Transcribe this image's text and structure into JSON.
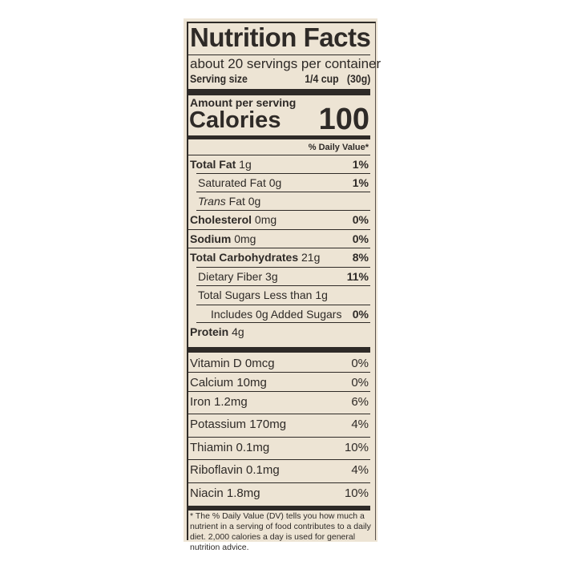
{
  "title": "Nutrition Facts",
  "servings_per_container": "about 20 servings per container",
  "serving_size_label": "Serving size",
  "serving_size_value": "1/4 cup   (30g)",
  "amount_per_serving": "Amount per serving",
  "calories_label": "Calories",
  "calories_value": "100",
  "dv_header": "% Daily Value*",
  "nutrients": [
    {
      "name": "Total Fat",
      "amount": " 1g",
      "dv": "1%"
    },
    {
      "name": "Saturated Fat",
      "amount": " 0g",
      "dv": "1%"
    },
    {
      "name": "Trans",
      "amount": " Fat 0g",
      "dv": ""
    },
    {
      "name": "Cholesterol",
      "amount": " 0mg",
      "dv": "0%"
    },
    {
      "name": "Sodium",
      "amount": " 0mg",
      "dv": "0%"
    },
    {
      "name": "Total Carbohydrates",
      "amount": " 21g",
      "dv": "8%"
    },
    {
      "name": "Dietary Fiber",
      "amount": " 3g",
      "dv": "11%"
    },
    {
      "name": "Total Sugars",
      "amount": " Less than 1g",
      "dv": ""
    },
    {
      "name": "Includes 0g Added Sugars",
      "amount": "",
      "dv": "0%"
    },
    {
      "name": "Protein",
      "amount": " 4g",
      "dv": ""
    }
  ],
  "vitamins": [
    {
      "name": "Vitamin D 0mcg",
      "dv": "0%"
    },
    {
      "name": "Calcium 10mg",
      "dv": "0%"
    },
    {
      "name": "Iron 1.2mg",
      "dv": "6%"
    },
    {
      "name": "Potassium 170mg",
      "dv": "4%"
    },
    {
      "name": "Thiamin 0.1mg",
      "dv": "10%"
    },
    {
      "name": "Riboflavin 0.1mg",
      "dv": "4%"
    },
    {
      "name": "Niacin 1.8mg",
      "dv": "10%"
    }
  ],
  "footnote": "* The % Daily Value (DV) tells you how much a nutrient in a serving of food contributes to a daily diet. 2,000 calories a day is used for general nutrition advice."
}
